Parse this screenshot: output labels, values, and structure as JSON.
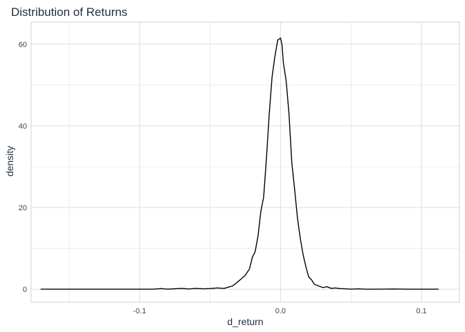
{
  "chart_data": {
    "type": "line",
    "title": "Distribution of Returns",
    "xlabel": "d_return",
    "ylabel": "density",
    "xlim": [
      -0.177,
      0.127
    ],
    "ylim": [
      -3.2,
      65.4
    ],
    "x_major_ticks": [
      -0.1,
      0.0,
      0.1
    ],
    "x_tick_labels": [
      "-0.1",
      "0.0",
      "0.1"
    ],
    "x_minor_ticks": [
      -0.15,
      -0.05,
      0.05
    ],
    "y_major_ticks": [
      0,
      20,
      40,
      60
    ],
    "y_tick_labels": [
      "0",
      "20",
      "40",
      "60"
    ],
    "y_minor_ticks": [
      10,
      30,
      50
    ],
    "grid": true,
    "line_color": "#000000",
    "grid_color": "#dcdcdc",
    "panel_border_color": "#d0d0d0",
    "series": [
      {
        "x": [
          -0.17,
          -0.15,
          -0.13,
          -0.11,
          -0.09,
          -0.085,
          -0.08,
          -0.07,
          -0.065,
          -0.06,
          -0.055,
          -0.05,
          -0.045,
          -0.04,
          -0.037,
          -0.034,
          -0.031,
          -0.028,
          -0.025,
          -0.022,
          -0.02,
          -0.018,
          -0.016,
          -0.014,
          -0.012,
          -0.01,
          -0.008,
          -0.006,
          -0.004,
          -0.002,
          0.0,
          0.001,
          0.002,
          0.004,
          0.006,
          0.008,
          0.01,
          0.012,
          0.014,
          0.016,
          0.018,
          0.02,
          0.022,
          0.024,
          0.027,
          0.03,
          0.033,
          0.036,
          0.039,
          0.042,
          0.046,
          0.05,
          0.055,
          0.06,
          0.07,
          0.08,
          0.09,
          0.1,
          0.112
        ],
        "y": [
          0,
          0,
          0,
          0,
          0,
          0.15,
          0,
          0.2,
          0.05,
          0.2,
          0.1,
          0.15,
          0.3,
          0.2,
          0.5,
          0.8,
          1.6,
          2.5,
          3.4,
          5.0,
          7.8,
          9.2,
          13.0,
          19.0,
          22.5,
          32.0,
          43.0,
          52.0,
          57.0,
          61.0,
          61.5,
          60.0,
          55.5,
          51.0,
          43.0,
          31.0,
          24.5,
          17.5,
          12.5,
          8.5,
          5.5,
          3.0,
          2.3,
          1.2,
          0.8,
          0.4,
          0.6,
          0.2,
          0.3,
          0.15,
          0.1,
          0,
          0.1,
          0,
          0,
          0.05,
          0,
          0,
          0
        ]
      }
    ]
  }
}
